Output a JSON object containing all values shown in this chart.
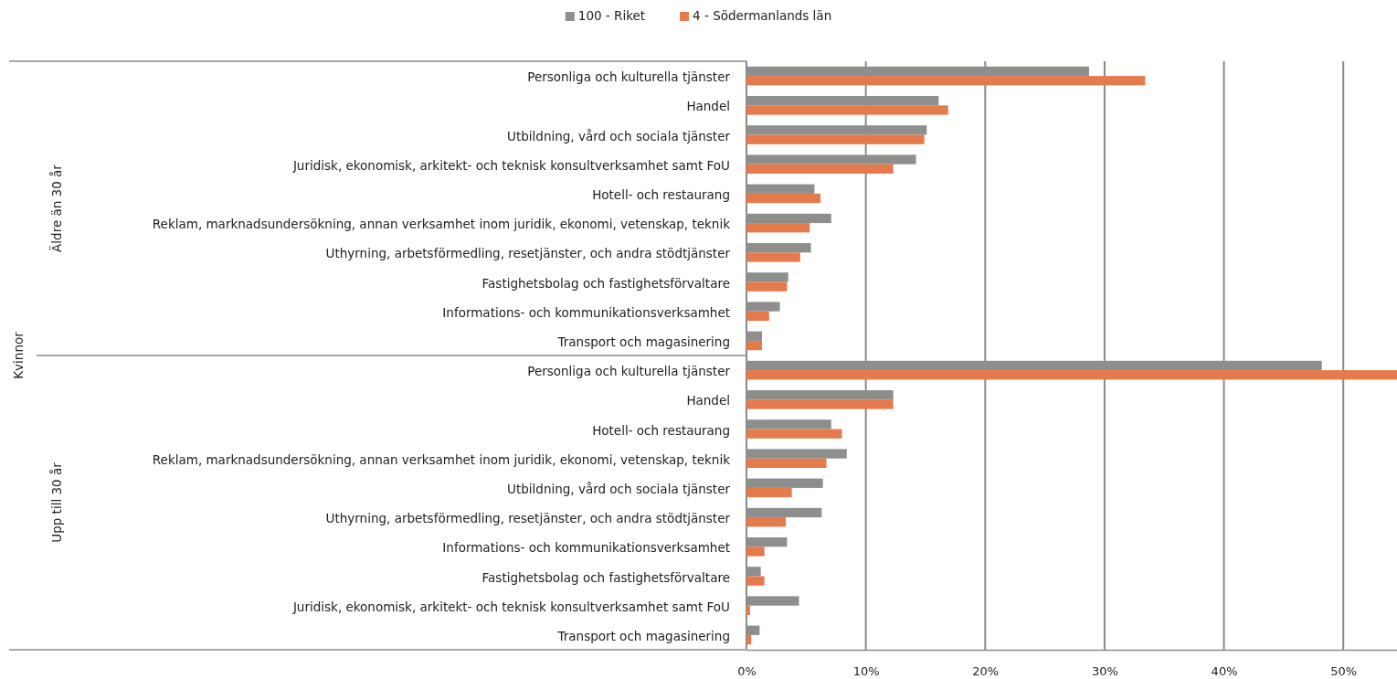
{
  "chart_data": {
    "type": "bar",
    "orientation": "horizontal",
    "annotations": [
      "Kvinnor",
      "Äldre än 30 år",
      "Upp till 30 år"
    ],
    "categories": [
      "Personliga och kulturella tjänster",
      "Handel",
      "Utbildning, vård och sociala tjänster",
      "Juridisk, ekonomisk, arkitekt- och teknisk konsultverksamhet samt FoU",
      "Hotell- och restaurang",
      "Reklam, marknadsundersökning, annan verksamhet inom juridik, ekonomi, vetenskap, teknik",
      "Uthyrning, arbetsförmedling, resetjänster, och andra stödtjänster",
      "Fastighetsbolag och fastighetsförvaltare",
      "Informations- och kommunikationsverksamhet",
      "Transport och magasinering",
      "Personliga och kulturella tjänster",
      "Handel",
      "Hotell- och restaurang",
      "Reklam, marknadsundersökning, annan verksamhet inom juridik, ekonomi, vetenskap, teknik",
      "Utbildning, vård och sociala tjänster",
      "Uthyrning, arbetsförmedling, resetjänster, och andra stödtjänster",
      "Informations- och kommunikationsverksamhet",
      "Fastighetsbolag och fastighetsförvaltare",
      "Juridisk, ekonomisk, arkitekt- och teknisk konsultverksamhet samt FoU",
      "Transport och magasinering"
    ],
    "series": [
      {
        "name": "100 - Riket",
        "color": "#8c8f8c",
        "values": [
          28.7,
          16.1,
          15.1,
          14.2,
          5.7,
          7.1,
          5.4,
          3.5,
          2.8,
          1.3,
          48.2,
          12.3,
          7.1,
          8.4,
          6.4,
          6.3,
          3.4,
          1.2,
          4.4,
          1.1
        ]
      },
      {
        "name": "4 - Södermanlands län",
        "color": "#e57b4c",
        "values": [
          33.4,
          16.9,
          14.9,
          12.3,
          6.2,
          5.3,
          4.5,
          3.4,
          1.9,
          1.3,
          54.5,
          12.3,
          8.0,
          6.7,
          3.8,
          3.3,
          1.5,
          1.5,
          0.3,
          0.4
        ]
      }
    ],
    "xlim": [
      0,
      54.5
    ],
    "xticks": [
      {
        "value": 0,
        "label": "0%"
      },
      {
        "value": 10,
        "label": "10%"
      },
      {
        "value": 20,
        "label": "20%"
      },
      {
        "value": 30,
        "label": "30%"
      },
      {
        "value": 40,
        "label": "40%"
      },
      {
        "value": 50,
        "label": "50%"
      }
    ],
    "grid": "x",
    "legend": "top"
  }
}
